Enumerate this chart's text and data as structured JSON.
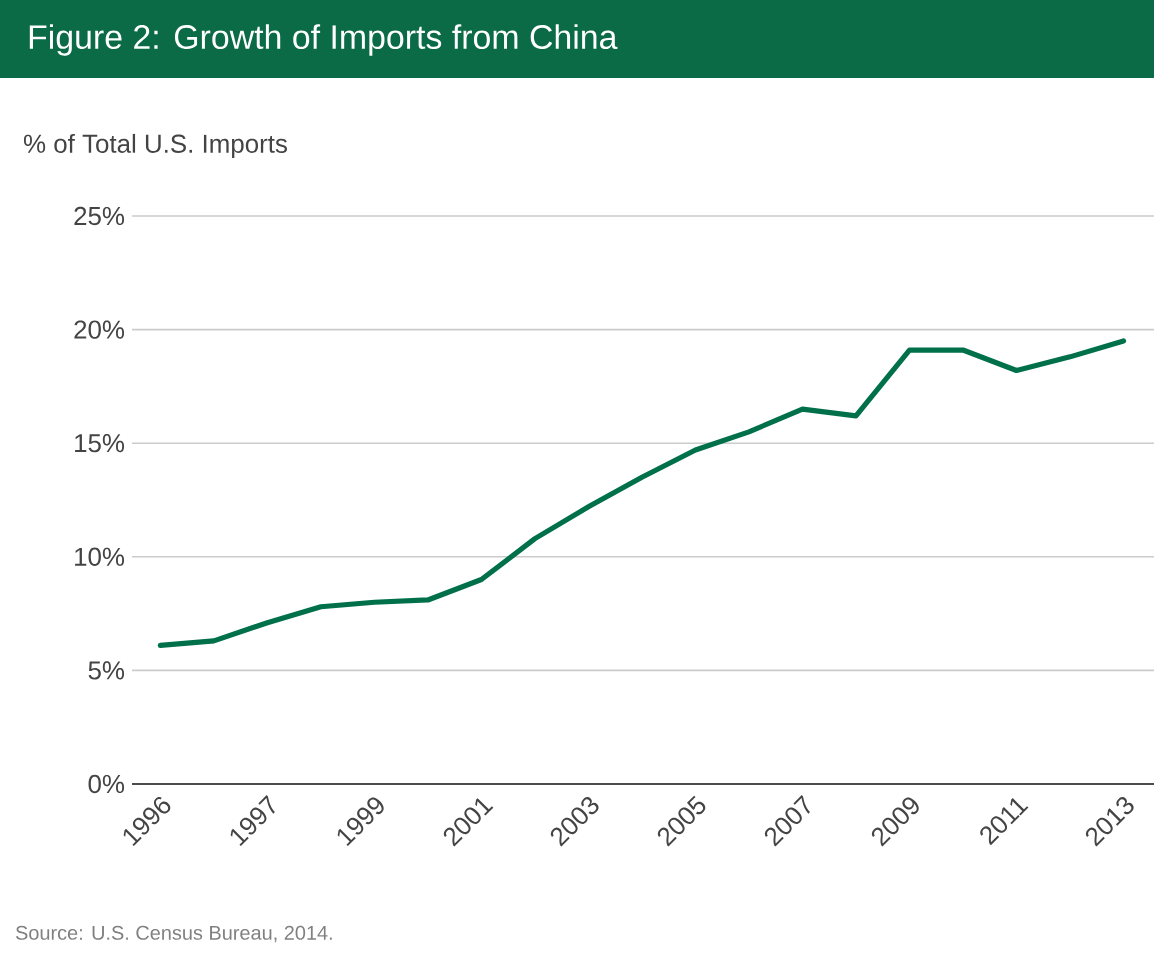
{
  "chart_data": {
    "type": "line",
    "title": "Figure 2: Growth of Imports from China",
    "ylabel": "% of Total U.S. Imports",
    "annotations": [
      "Source: U.S. Census Bureau, 2014."
    ],
    "categories": [
      "1996",
      null,
      "1997",
      null,
      "1999",
      null,
      "2001",
      null,
      "2003",
      null,
      "2005",
      null,
      "2007",
      null,
      "2009",
      null,
      "2011",
      null,
      "2013"
    ],
    "series": [
      {
        "color": "#00704a",
        "values": [
          6.1,
          6.3,
          7.1,
          7.8,
          8.0,
          8.1,
          9.0,
          10.8,
          12.2,
          13.5,
          14.7,
          15.5,
          16.5,
          16.2,
          19.1,
          19.1,
          18.2,
          18.8,
          19.5
        ]
      }
    ],
    "ylim": [
      0,
      25
    ],
    "yticks": [
      {
        "value": 0,
        "label": "0%"
      },
      {
        "value": 5,
        "label": "5%"
      },
      {
        "value": 10,
        "label": "10%"
      },
      {
        "value": 15,
        "label": "15%"
      },
      {
        "value": 20,
        "label": "20%"
      },
      {
        "value": 25,
        "label": "25%"
      }
    ],
    "grid": "y",
    "marker": "none",
    "line_style": "solid"
  }
}
